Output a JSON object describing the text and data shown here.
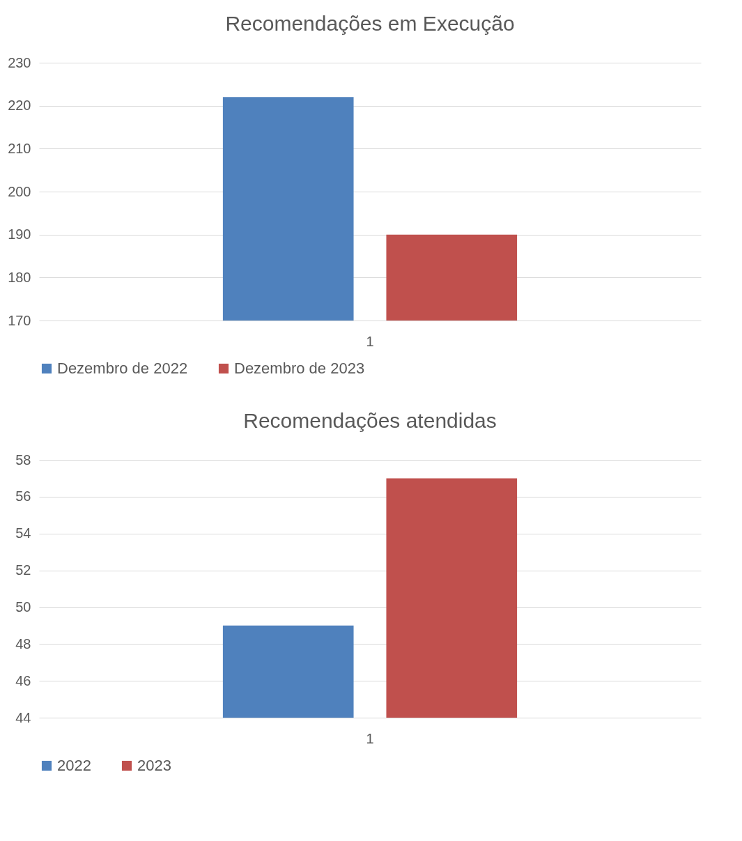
{
  "chart_data": [
    {
      "type": "bar",
      "title": "Recomendações  em Execução",
      "categories": [
        "1"
      ],
      "series": [
        {
          "name": "Dezembro de 2022",
          "color": "#4f81bd",
          "values": [
            222
          ]
        },
        {
          "name": "Dezembro de 2023",
          "color": "#c0504d",
          "values": [
            190
          ]
        }
      ],
      "ylim": [
        170,
        230
      ],
      "yticks": [
        170,
        180,
        190,
        200,
        210,
        220,
        230
      ],
      "grid": "y",
      "legend": "bottom"
    },
    {
      "type": "bar",
      "title": "Recomendações  atendidas",
      "categories": [
        "1"
      ],
      "series": [
        {
          "name": "2022",
          "color": "#4f81bd",
          "values": [
            49
          ]
        },
        {
          "name": "2023",
          "color": "#c0504d",
          "values": [
            57
          ]
        }
      ],
      "ylim": [
        44,
        58
      ],
      "yticks": [
        44,
        46,
        48,
        50,
        52,
        54,
        56,
        58
      ],
      "grid": "y",
      "legend": "bottom"
    }
  ]
}
